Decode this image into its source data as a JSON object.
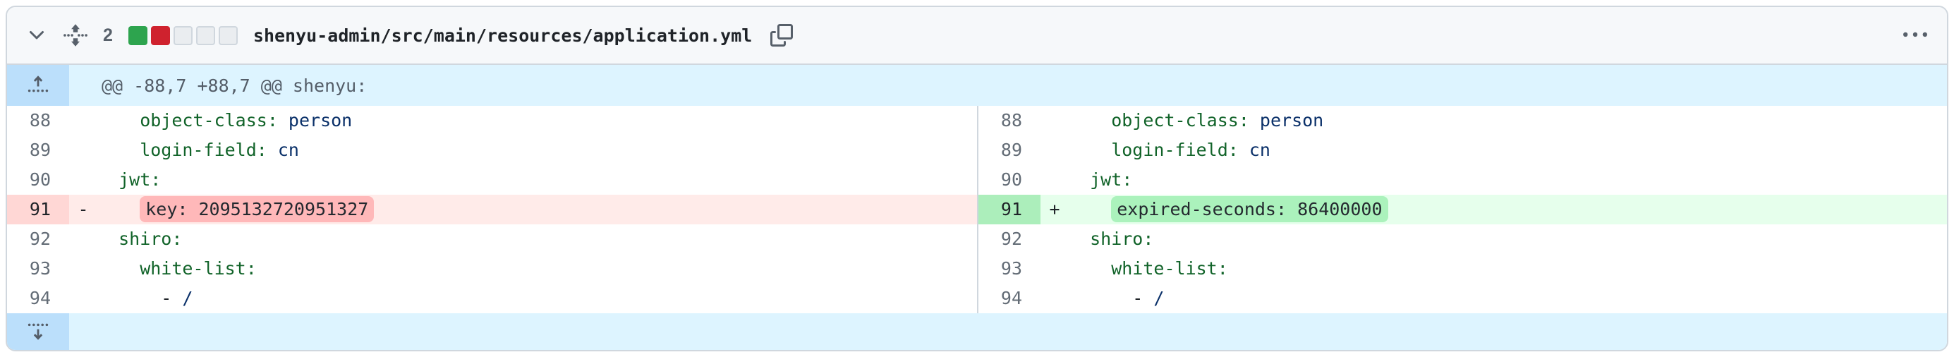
{
  "header": {
    "collapse_icon": "chevron-down-icon",
    "drag_icon": "drag-vertical-icon",
    "changes_count": "2",
    "diffstat_squares": [
      "addition",
      "deletion",
      "neutral",
      "neutral",
      "neutral"
    ],
    "filename": "shenyu-admin/src/main/resources/application.yml",
    "copy_icon": "copy-icon",
    "more_icon": "kebab-horizontal-icon"
  },
  "hunk": {
    "header_text": "@@ -88,7 +88,7 @@ shenyu:",
    "expand_up_icon": "expand-up-icon",
    "expand_down_icon": "expand-down-icon"
  },
  "colors": {
    "addition_square": "#2da44e",
    "deletion_square": "#cf222e",
    "neutral_square": "#eaedf0",
    "hunk_row_bg": "#ddf4ff",
    "hunk_gutter_bg": "#bbdffb",
    "deletion_line_bg": "#ffebe9",
    "deletion_number_bg": "#ffd7d5",
    "deletion_word_bg": "#ffb8b9",
    "addition_line_bg": "#e6ffec",
    "addition_number_bg": "#aceebb",
    "addition_word_bg": "#abf2bc",
    "yaml_key_color": "#116329",
    "yaml_value_color": "#0a3069"
  },
  "diff": {
    "left_lines": [
      {
        "num": "88",
        "marker": "",
        "type": "context",
        "segments": [
          {
            "cls": "key",
            "text": "    object-class:"
          },
          {
            "cls": "str",
            "text": " person"
          }
        ]
      },
      {
        "num": "89",
        "marker": "",
        "type": "context",
        "segments": [
          {
            "cls": "key",
            "text": "    login-field:"
          },
          {
            "cls": "str",
            "text": " cn"
          }
        ]
      },
      {
        "num": "90",
        "marker": "",
        "type": "context",
        "segments": [
          {
            "cls": "key",
            "text": "  jwt:"
          }
        ]
      },
      {
        "num": "91",
        "marker": "-",
        "type": "deletion",
        "segments": [
          {
            "cls": "plain",
            "text": "    "
          },
          {
            "cls": "hl",
            "text": "key: 2095132720951327"
          }
        ]
      },
      {
        "num": "92",
        "marker": "",
        "type": "context",
        "segments": [
          {
            "cls": "key",
            "text": "  shiro:"
          }
        ]
      },
      {
        "num": "93",
        "marker": "",
        "type": "context",
        "segments": [
          {
            "cls": "key",
            "text": "    white-list:"
          }
        ]
      },
      {
        "num": "94",
        "marker": "",
        "type": "context",
        "segments": [
          {
            "cls": "plain",
            "text": "      - "
          },
          {
            "cls": "str",
            "text": "/"
          }
        ]
      }
    ],
    "right_lines": [
      {
        "num": "88",
        "marker": "",
        "type": "context",
        "segments": [
          {
            "cls": "key",
            "text": "    object-class:"
          },
          {
            "cls": "str",
            "text": " person"
          }
        ]
      },
      {
        "num": "89",
        "marker": "",
        "type": "context",
        "segments": [
          {
            "cls": "key",
            "text": "    login-field:"
          },
          {
            "cls": "str",
            "text": " cn"
          }
        ]
      },
      {
        "num": "90",
        "marker": "",
        "type": "context",
        "segments": [
          {
            "cls": "key",
            "text": "  jwt:"
          }
        ]
      },
      {
        "num": "91",
        "marker": "+",
        "type": "addition",
        "segments": [
          {
            "cls": "plain",
            "text": "    "
          },
          {
            "cls": "hl",
            "text": "expired-seconds: 86400000"
          }
        ]
      },
      {
        "num": "92",
        "marker": "",
        "type": "context",
        "segments": [
          {
            "cls": "key",
            "text": "  shiro:"
          }
        ]
      },
      {
        "num": "93",
        "marker": "",
        "type": "context",
        "segments": [
          {
            "cls": "key",
            "text": "    white-list:"
          }
        ]
      },
      {
        "num": "94",
        "marker": "",
        "type": "context",
        "segments": [
          {
            "cls": "plain",
            "text": "      - "
          },
          {
            "cls": "str",
            "text": "/"
          }
        ]
      }
    ]
  }
}
